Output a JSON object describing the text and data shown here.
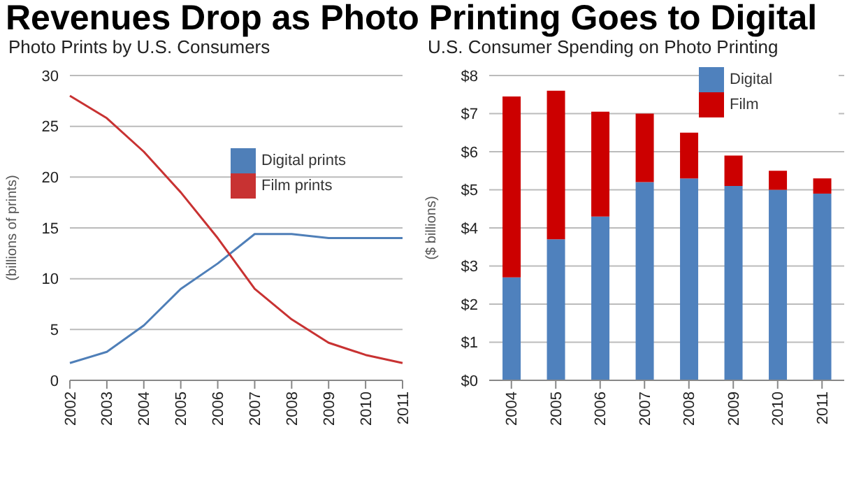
{
  "chart_data": [
    {
      "type": "line",
      "title": "Revenues Drop as Photo Printing Goes to Digital",
      "subtitle": "Photo Prints by U.S. Consumers",
      "ylabel": "(billions of prints)",
      "categories": [
        "2002",
        "2003",
        "2004",
        "2005",
        "2006",
        "2007",
        "2008",
        "2009",
        "2010",
        "2011"
      ],
      "series": [
        {
          "name": "Digital prints",
          "color": "#4f7fb8",
          "values": [
            1.7,
            2.8,
            5.4,
            9,
            11.5,
            14.4,
            14.4,
            14,
            14,
            14
          ]
        },
        {
          "name": "Film prints",
          "color": "#c83232",
          "values": [
            28,
            25.8,
            22.5,
            18.5,
            14,
            9,
            6,
            3.7,
            2.5,
            1.7
          ]
        }
      ],
      "ylim": [
        0,
        30
      ],
      "yticks": [
        0,
        5,
        10,
        15,
        20,
        25,
        30
      ],
      "grid": "y",
      "legend": "right",
      "marker": "none",
      "line_style": "solid"
    },
    {
      "type": "bar",
      "stacked": true,
      "subtitle": "U.S. Consumer Spending on Photo Printing",
      "ylabel": "($ billions)",
      "categories": [
        "2004",
        "2005",
        "2006",
        "2007",
        "2008",
        "2009",
        "2010",
        "2011"
      ],
      "series": [
        {
          "name": "Digital",
          "color": "#4f81bd",
          "values": [
            2.7,
            3.7,
            4.3,
            5.2,
            5.3,
            5.1,
            5.0,
            4.9
          ]
        },
        {
          "name": "Film",
          "color": "#cc0000",
          "values": [
            4.75,
            3.9,
            2.75,
            1.8,
            1.2,
            0.8,
            0.5,
            0.4
          ]
        }
      ],
      "ylim": [
        0,
        8
      ],
      "yticks": [
        {
          "value": 0,
          "label": "$0"
        },
        {
          "value": 1,
          "label": "$1"
        },
        {
          "value": 2,
          "label": "$2"
        },
        {
          "value": 3,
          "label": "$3"
        },
        {
          "value": 4,
          "label": "$4"
        },
        {
          "value": 5,
          "label": "$5"
        },
        {
          "value": 6,
          "label": "$6"
        },
        {
          "value": 7,
          "label": "$7"
        },
        {
          "value": 8,
          "label": "$8"
        }
      ],
      "grid": "y",
      "legend": "top"
    }
  ]
}
